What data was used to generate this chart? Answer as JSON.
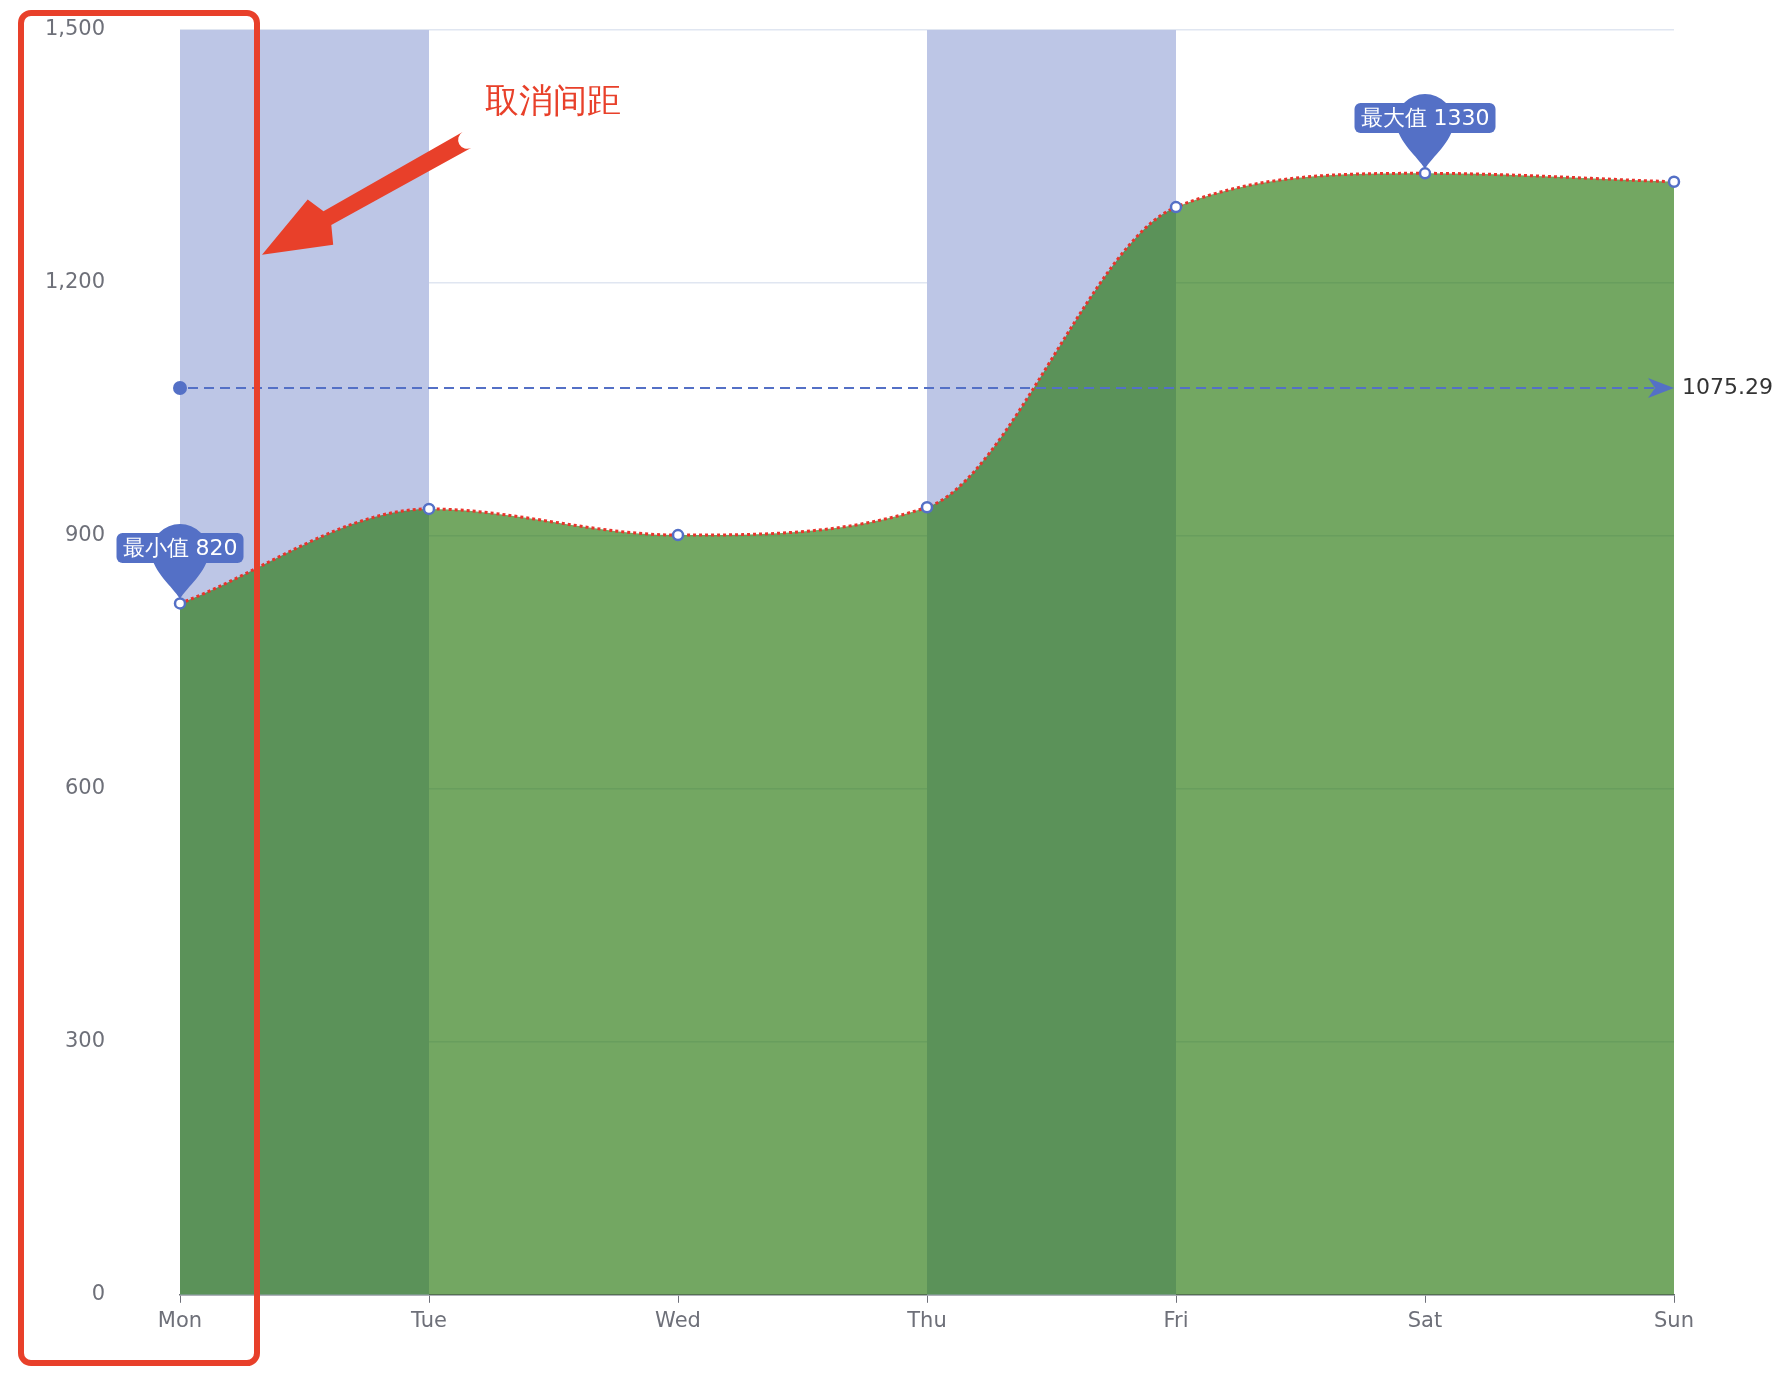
{
  "chart_data": {
    "type": "area",
    "categories": [
      "Mon",
      "Tue",
      "Wed",
      "Thu",
      "Fri",
      "Sat",
      "Sun"
    ],
    "series": [
      {
        "color": "#24760a",
        "values": [
          820,
          932,
          901,
          934,
          1290,
          1330,
          1320
        ]
      },
      {
        "type": "line",
        "color": "#e8342c",
        "values": [
          820,
          932,
          901,
          934,
          1290,
          1330,
          1320
        ],
        "line_style": "dotted"
      },
      {
        "type": "scatter",
        "color": "#5470c6",
        "values": [
          820,
          932,
          901,
          934,
          1290,
          1330,
          1320
        ],
        "marker": "circle"
      }
    ],
    "ylim": [
      0,
      1500
    ],
    "yticks": [
      0,
      300,
      600,
      900,
      {
        "value": 1200,
        "label": "1,200"
      },
      {
        "value": 1500,
        "label": "1,500"
      }
    ],
    "grid": "y",
    "bands": [
      {
        "axis": "x",
        "from": "Mon",
        "to": "Tue",
        "color": "#bdc6e6"
      },
      {
        "axis": "x",
        "from": "Thu",
        "to": "Fri",
        "color": "#bdc6e6"
      }
    ],
    "ref_lines": [
      {
        "axis": "y",
        "value": 1075.29,
        "label": "1075.29",
        "color": "#5470c6",
        "line_style": "dashed"
      }
    ],
    "annotations": [
      "取消间距",
      {
        "text": "最小值 820",
        "x": "Mon",
        "y": 820
      },
      {
        "text": "最大值 1330",
        "x": "Sat",
        "y": 1330
      }
    ]
  }
}
